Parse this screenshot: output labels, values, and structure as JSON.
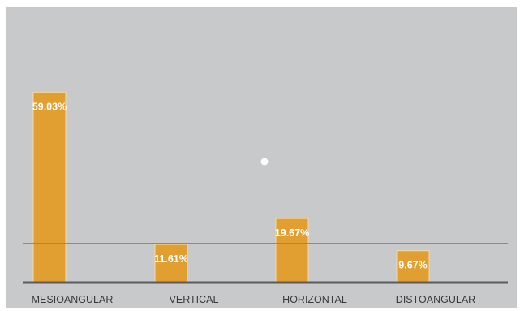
{
  "chart_data": {
    "type": "bar",
    "title": "",
    "xlabel": "",
    "ylabel": "",
    "categories": [
      "MESIOANGULAR",
      "VERTICAL",
      "HORIZONTAL",
      "DISTOANGULAR"
    ],
    "values": [
      59.03,
      11.61,
      19.67,
      9.67
    ],
    "data_labels": [
      "59.03%",
      "11.61%",
      "19.67%",
      "9.67%"
    ],
    "ylim": [
      0,
      72
    ],
    "reference_line": 12,
    "grid": false,
    "legend": "none",
    "colors": {
      "bar": "#e09f30",
      "bar_border": "#f5d9a6",
      "background": "#c8c9ca",
      "axis": "#5b5b5b",
      "reference_line": "#8a8a8a",
      "label_text": "#ffffff",
      "tick_text": "#3a3a3a"
    }
  }
}
